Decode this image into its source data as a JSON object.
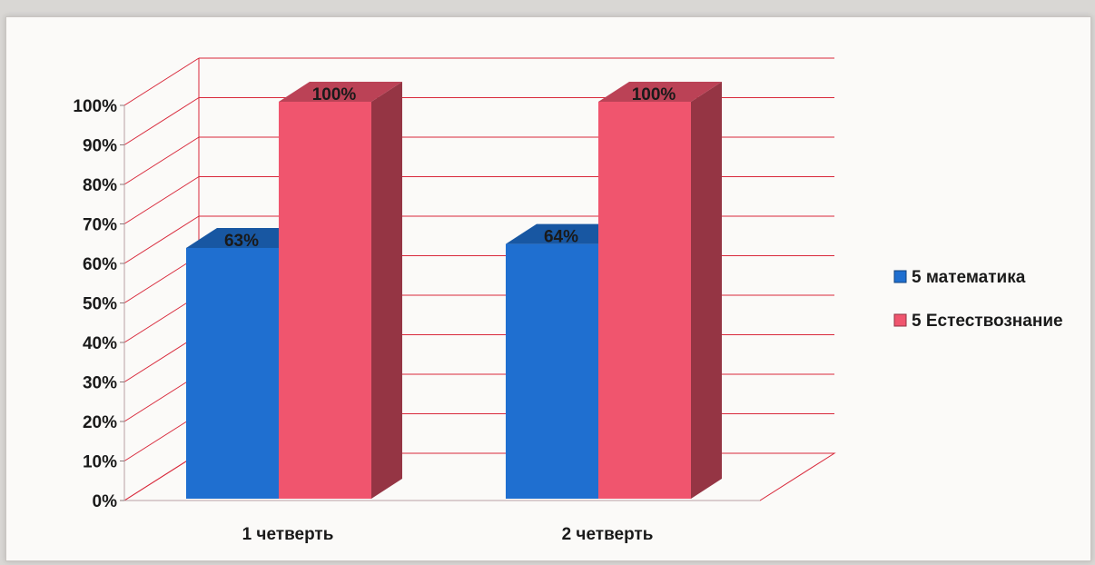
{
  "chart_data": {
    "type": "bar",
    "categories": [
      "1 четверть",
      "2 четверть"
    ],
    "series": [
      {
        "name": "5 математика",
        "values": [
          63,
          64
        ],
        "labels": [
          "63%",
          "64%"
        ],
        "color": "#1f6fd0"
      },
      {
        "name": "5 Естествознание",
        "values": [
          100,
          100
        ],
        "labels": [
          "100%",
          "100%"
        ],
        "color": "#f0556e"
      }
    ],
    "y_ticks": [
      "0%",
      "10%",
      "20%",
      "30%",
      "40%",
      "50%",
      "60%",
      "70%",
      "80%",
      "90%",
      "100%"
    ],
    "ylim": [
      0,
      100
    ],
    "grid": true,
    "legend": "right",
    "grid_color": "#d8283a"
  }
}
